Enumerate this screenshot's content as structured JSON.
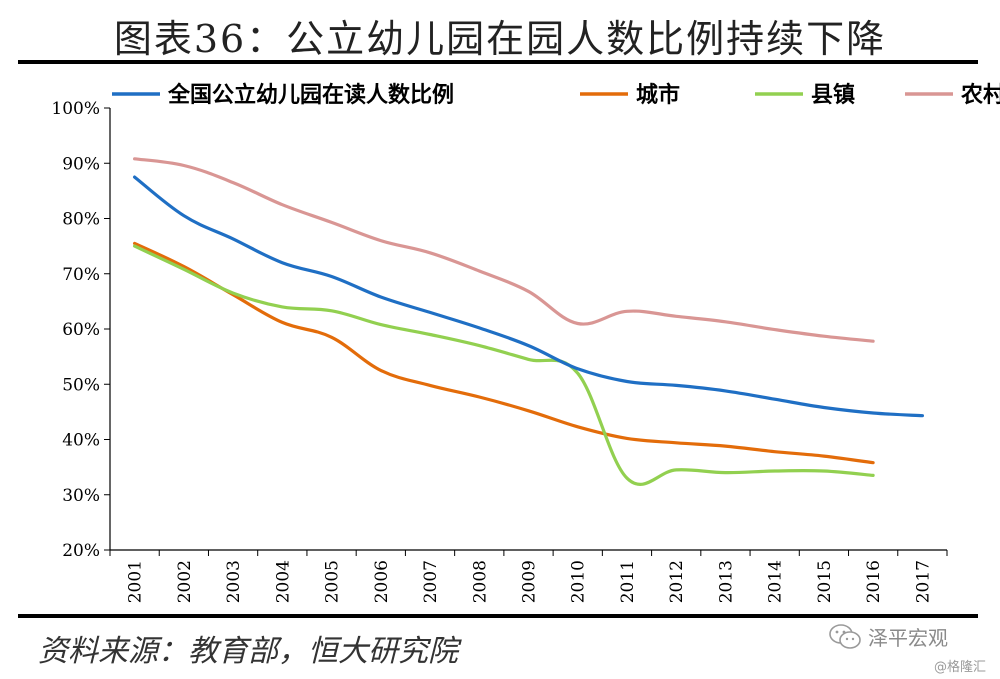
{
  "chart_data": {
    "type": "line",
    "title": "图表36：公立幼儿园在园人数比例持续下降",
    "xlabel": "",
    "ylabel": "",
    "categories": [
      "2001",
      "2002",
      "2003",
      "2004",
      "2005",
      "2006",
      "2007",
      "2008",
      "2009",
      "2010",
      "2011",
      "2012",
      "2013",
      "2014",
      "2015",
      "2016",
      "2017"
    ],
    "ylim": [
      20,
      100
    ],
    "yticks": [
      20,
      30,
      40,
      50,
      60,
      70,
      80,
      90,
      100
    ],
    "ytick_labels": [
      "20%",
      "30%",
      "40%",
      "50%",
      "60%",
      "70%",
      "80%",
      "90%",
      "100%"
    ],
    "grid": false,
    "legend_position": "top",
    "series": [
      {
        "name": "全国公立幼儿园在读人数比例",
        "color": "#1f6fc4",
        "values": [
          87.5,
          80.5,
          76.3,
          72.0,
          69.5,
          65.8,
          63.0,
          60.2,
          57.0,
          52.8,
          50.5,
          49.8,
          48.8,
          47.3,
          45.8,
          44.8,
          44.3
        ]
      },
      {
        "name": "城市",
        "color": "#e36c0a",
        "values": [
          75.5,
          71.3,
          66.2,
          61.2,
          58.5,
          52.5,
          49.8,
          47.7,
          45.2,
          42.3,
          40.2,
          39.4,
          38.8,
          37.8,
          37.0,
          35.8,
          null
        ]
      },
      {
        "name": "县镇",
        "color": "#92d050",
        "values": [
          75.0,
          70.8,
          66.5,
          64.0,
          63.3,
          60.8,
          59.0,
          57.0,
          54.5,
          52.0,
          33.0,
          34.5,
          34.0,
          34.3,
          34.3,
          33.5,
          null
        ]
      },
      {
        "name": "农村",
        "color": "#d99694",
        "values": [
          90.8,
          89.6,
          86.5,
          82.5,
          79.3,
          76.0,
          73.8,
          70.5,
          66.8,
          61.0,
          63.2,
          62.3,
          61.3,
          59.9,
          58.7,
          57.8,
          null
        ]
      }
    ]
  },
  "footer": {
    "source": "资料来源：教育部，恒大研究院",
    "watermark_brand": "泽平宏观",
    "watermark_sub": "@格隆汇"
  }
}
